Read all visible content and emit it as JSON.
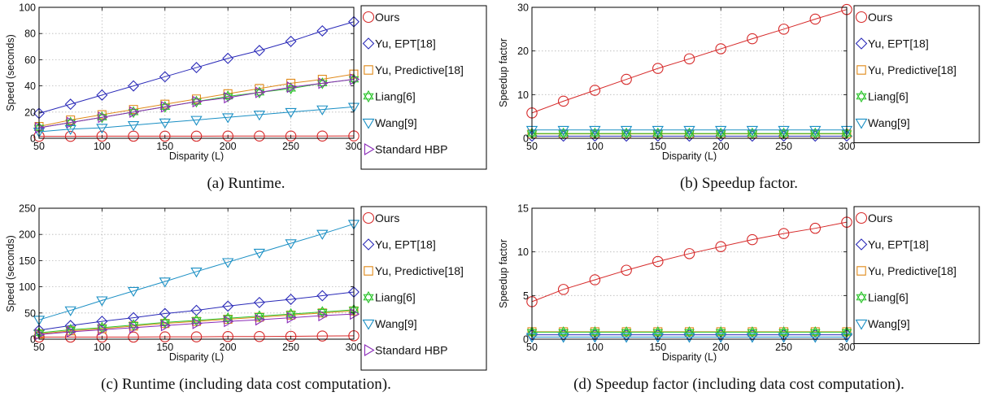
{
  "chart_data": [
    {
      "id": "a",
      "type": "line",
      "caption": "(a) Runtime.",
      "xlabel": "Disparity (L)",
      "ylabel": "Speed (seconds)",
      "xlim": [
        50,
        300
      ],
      "ylim": [
        0,
        100
      ],
      "xticks": [
        50,
        100,
        150,
        200,
        250,
        300
      ],
      "yticks": [
        0,
        20,
        40,
        60,
        80,
        100
      ],
      "grid": true,
      "legend_position": "outside-right",
      "x": [
        50,
        75,
        100,
        125,
        150,
        175,
        200,
        225,
        250,
        275,
        300
      ],
      "series": [
        {
          "name": "Ours",
          "color": "#d62a2a",
          "marker": "circle",
          "values": [
            1.5,
            1.5,
            1.6,
            1.6,
            1.6,
            1.6,
            1.7,
            1.7,
            1.7,
            1.7,
            1.8
          ]
        },
        {
          "name": "Yu, EPT[18]",
          "color": "#2a2ab8",
          "marker": "diamond",
          "values": [
            19,
            26,
            33,
            40,
            47,
            54,
            61,
            67,
            74,
            82,
            89
          ]
        },
        {
          "name": "Yu, Predictive[18]",
          "color": "#e08a1a",
          "marker": "square",
          "values": [
            9,
            14,
            18,
            22,
            26,
            30,
            34,
            38,
            42,
            45,
            49
          ]
        },
        {
          "name": "Liang[6]",
          "color": "#2bc42b",
          "marker": "hexagram",
          "values": [
            8,
            12,
            16,
            20,
            24,
            28,
            32,
            35,
            38,
            42,
            45
          ]
        },
        {
          "name": "Wang[9]",
          "color": "#1a8fc4",
          "marker": "triangle-down",
          "values": [
            5,
            7,
            8,
            10,
            12,
            14,
            16,
            18,
            20,
            22,
            24
          ]
        },
        {
          "name": "Standard HBP",
          "color": "#8a2ab8",
          "marker": "triangle-right",
          "values": [
            8,
            12,
            16,
            20,
            24,
            28,
            31,
            35,
            39,
            42,
            45
          ]
        }
      ]
    },
    {
      "id": "b",
      "type": "line",
      "caption": "(b) Speedup factor.",
      "xlabel": "Disparity (L)",
      "ylabel": "Speedup factor",
      "xlim": [
        50,
        300
      ],
      "ylim": [
        0,
        30
      ],
      "xticks": [
        50,
        100,
        150,
        200,
        250,
        300
      ],
      "yticks": [
        0,
        10,
        20,
        30
      ],
      "grid": true,
      "legend_position": "outside-right",
      "x": [
        50,
        75,
        100,
        125,
        150,
        175,
        200,
        225,
        250,
        275,
        300
      ],
      "series": [
        {
          "name": "Ours",
          "color": "#d62a2a",
          "marker": "circle",
          "values": [
            5.8,
            8.5,
            11.0,
            13.5,
            16.0,
            18.2,
            20.5,
            22.8,
            25.0,
            27.3,
            29.5
          ]
        },
        {
          "name": "Yu, EPT[18]",
          "color": "#2a2ab8",
          "marker": "diamond",
          "values": [
            0.5,
            0.5,
            0.5,
            0.5,
            0.5,
            0.5,
            0.5,
            0.5,
            0.5,
            0.5,
            0.5
          ]
        },
        {
          "name": "Yu, Predictive[18]",
          "color": "#e08a1a",
          "marker": "square",
          "values": [
            1.0,
            1.0,
            1.0,
            1.0,
            1.0,
            1.0,
            1.0,
            1.0,
            1.0,
            1.0,
            1.0
          ]
        },
        {
          "name": "Liang[6]",
          "color": "#2bc42b",
          "marker": "hexagram",
          "values": [
            1.1,
            1.1,
            1.1,
            1.1,
            1.1,
            1.1,
            1.1,
            1.1,
            1.1,
            1.1,
            1.1
          ]
        },
        {
          "name": "Wang[9]",
          "color": "#1a8fc4",
          "marker": "triangle-down",
          "values": [
            1.9,
            1.9,
            1.9,
            1.9,
            1.9,
            1.9,
            1.9,
            1.9,
            1.9,
            1.9,
            1.9
          ]
        }
      ]
    },
    {
      "id": "c",
      "type": "line",
      "caption": "(c) Runtime (including data cost computation).",
      "xlabel": "Disparity (L)",
      "ylabel": "Speed (seconds)",
      "xlim": [
        50,
        300
      ],
      "ylim": [
        0,
        250
      ],
      "xticks": [
        50,
        100,
        150,
        200,
        250,
        300
      ],
      "yticks": [
        0,
        50,
        100,
        150,
        200,
        250
      ],
      "grid": true,
      "legend_position": "outside-right",
      "x": [
        50,
        75,
        100,
        125,
        150,
        175,
        200,
        225,
        250,
        275,
        300
      ],
      "series": [
        {
          "name": "Ours",
          "color": "#d62a2a",
          "marker": "circle",
          "values": [
            4,
            4,
            4,
            4,
            4.5,
            4.5,
            5,
            5,
            5.5,
            6,
            6.5
          ]
        },
        {
          "name": "Yu, EPT[18]",
          "color": "#2a2ab8",
          "marker": "diamond",
          "values": [
            17,
            26,
            34,
            41,
            49,
            55,
            63,
            70,
            76,
            83,
            90
          ]
        },
        {
          "name": "Yu, Predictive[18]",
          "color": "#e08a1a",
          "marker": "square",
          "values": [
            10,
            16,
            20,
            25,
            30,
            34,
            38,
            42,
            46,
            50,
            54
          ]
        },
        {
          "name": "Liang[6]",
          "color": "#2bc42b",
          "marker": "hexagram",
          "values": [
            12,
            18,
            22,
            27,
            32,
            36,
            40,
            44,
            48,
            52,
            56
          ]
        },
        {
          "name": "Wang[9]",
          "color": "#1a8fc4",
          "marker": "triangle-down",
          "values": [
            37,
            55,
            74,
            92,
            110,
            129,
            147,
            165,
            183,
            201,
            220
          ]
        },
        {
          "name": "Standard HBP",
          "color": "#8a2ab8",
          "marker": "triangle-right",
          "values": [
            9,
            14,
            18,
            22,
            26,
            30,
            34,
            37,
            41,
            45,
            48
          ]
        }
      ]
    },
    {
      "id": "d",
      "type": "line",
      "caption": "(d) Speedup factor (including data cost computation).",
      "xlabel": "Disparity (L)",
      "ylabel": "Speedup factor",
      "xlim": [
        50,
        300
      ],
      "ylim": [
        0,
        15
      ],
      "xticks": [
        50,
        100,
        150,
        200,
        250,
        300
      ],
      "yticks": [
        0,
        5,
        10,
        15
      ],
      "grid": true,
      "legend_position": "outside-right",
      "x": [
        50,
        75,
        100,
        125,
        150,
        175,
        200,
        225,
        250,
        275,
        300
      ],
      "series": [
        {
          "name": "Ours",
          "color": "#d62a2a",
          "marker": "circle",
          "values": [
            4.3,
            5.7,
            6.8,
            7.9,
            8.9,
            9.8,
            10.6,
            11.4,
            12.1,
            12.7,
            13.4
          ]
        },
        {
          "name": "Yu, EPT[18]",
          "color": "#2a2ab8",
          "marker": "diamond",
          "values": [
            0.5,
            0.5,
            0.5,
            0.5,
            0.5,
            0.5,
            0.5,
            0.5,
            0.5,
            0.5,
            0.5
          ]
        },
        {
          "name": "Yu, Predictive[18]",
          "color": "#e08a1a",
          "marker": "square",
          "values": [
            0.85,
            0.85,
            0.85,
            0.85,
            0.85,
            0.85,
            0.85,
            0.85,
            0.85,
            0.85,
            0.85
          ]
        },
        {
          "name": "Liang[6]",
          "color": "#2bc42b",
          "marker": "hexagram",
          "values": [
            0.8,
            0.8,
            0.8,
            0.8,
            0.8,
            0.8,
            0.8,
            0.8,
            0.8,
            0.8,
            0.8
          ]
        },
        {
          "name": "Wang[9]",
          "color": "#1a8fc4",
          "marker": "triangle-down",
          "values": [
            0.25,
            0.25,
            0.25,
            0.25,
            0.25,
            0.25,
            0.25,
            0.25,
            0.25,
            0.25,
            0.25
          ]
        }
      ]
    }
  ]
}
